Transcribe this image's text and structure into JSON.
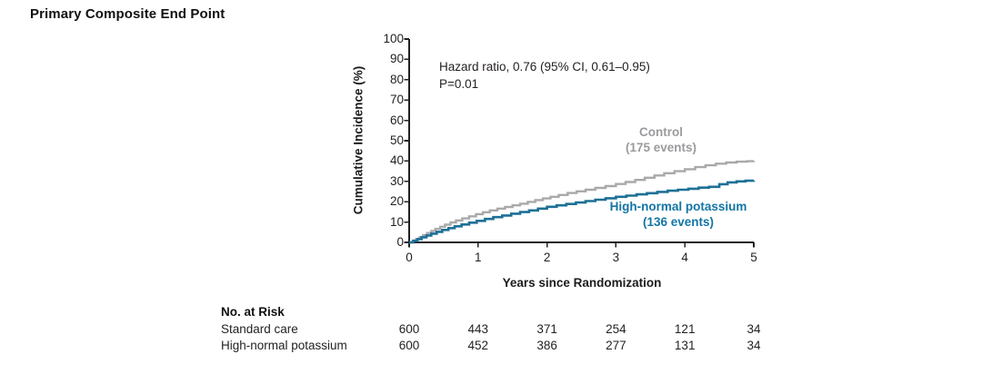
{
  "figure": {
    "title": "Primary Composite End Point"
  },
  "annotation": {
    "line1": "Hazard ratio, 0.76 (95% CI, 0.61–0.95)",
    "line2": "P=0.01"
  },
  "axes": {
    "y_label": "Cumulative Incidence (%)",
    "x_label": "Years since Randomization"
  },
  "legend": {
    "control": {
      "name": "Control",
      "events": "(175 events)"
    },
    "potassium": {
      "name": "High-normal potassium",
      "events": "(136 events)"
    }
  },
  "colors": {
    "control_line": "#a9a9ab",
    "potassium_line": "#1d7096",
    "axis": "#231f20",
    "control_text": "#9b9b9e",
    "potassium_text": "#1375a5"
  },
  "chart_data": {
    "type": "line",
    "subtype": "kaplan-meier-step",
    "title": "Primary Composite End Point",
    "xlabel": "Years since Randomization",
    "ylabel": "Cumulative Incidence (%)",
    "xlim": [
      0,
      5
    ],
    "ylim": [
      0,
      100
    ],
    "x_ticks": [
      0,
      1,
      2,
      3,
      4,
      5
    ],
    "y_ticks": [
      0,
      10,
      20,
      30,
      40,
      50,
      60,
      70,
      80,
      90,
      100
    ],
    "grid": false,
    "legend_position": "inline-labels",
    "annotations": [
      "Hazard ratio, 0.76 (95% CI, 0.61–0.95)",
      "P=0.01"
    ],
    "series": [
      {
        "name": "Control",
        "events": 175,
        "color": "#a9a9ab",
        "points": [
          [
            0,
            0
          ],
          [
            0.05,
            0.8
          ],
          [
            0.1,
            1.7
          ],
          [
            0.15,
            2.6
          ],
          [
            0.2,
            3.6
          ],
          [
            0.26,
            4.6
          ],
          [
            0.32,
            5.6
          ],
          [
            0.38,
            6.6
          ],
          [
            0.45,
            7.7
          ],
          [
            0.52,
            8.7
          ],
          [
            0.6,
            9.8
          ],
          [
            0.68,
            10.8
          ],
          [
            0.77,
            11.8
          ],
          [
            0.87,
            12.8
          ],
          [
            0.97,
            13.9
          ],
          [
            1.07,
            14.8
          ],
          [
            1.17,
            15.7
          ],
          [
            1.28,
            16.6
          ],
          [
            1.39,
            17.4
          ],
          [
            1.5,
            18.2
          ],
          [
            1.61,
            19.0
          ],
          [
            1.72,
            19.9
          ],
          [
            1.83,
            20.8
          ],
          [
            1.94,
            21.6
          ],
          [
            2.05,
            22.4
          ],
          [
            2.17,
            23.3
          ],
          [
            2.3,
            24.3
          ],
          [
            2.43,
            25.1
          ],
          [
            2.56,
            25.9
          ],
          [
            2.7,
            26.8
          ],
          [
            2.85,
            27.7
          ],
          [
            3.0,
            28.7
          ],
          [
            3.14,
            29.7
          ],
          [
            3.28,
            30.7
          ],
          [
            3.42,
            31.8
          ],
          [
            3.56,
            32.9
          ],
          [
            3.7,
            34.0
          ],
          [
            3.85,
            35.0
          ],
          [
            4.0,
            36.0
          ],
          [
            4.15,
            37.0
          ],
          [
            4.3,
            37.9
          ],
          [
            4.45,
            38.7
          ],
          [
            4.6,
            39.3
          ],
          [
            4.75,
            39.7
          ],
          [
            4.9,
            39.9
          ],
          [
            5.0,
            40.0
          ]
        ]
      },
      {
        "name": "High-normal potassium",
        "events": 136,
        "color": "#1d7096",
        "points": [
          [
            0,
            0
          ],
          [
            0.06,
            0.8
          ],
          [
            0.12,
            1.6
          ],
          [
            0.18,
            2.5
          ],
          [
            0.25,
            3.4
          ],
          [
            0.32,
            4.3
          ],
          [
            0.4,
            5.2
          ],
          [
            0.48,
            6.1
          ],
          [
            0.57,
            7.0
          ],
          [
            0.66,
            7.9
          ],
          [
            0.76,
            8.8
          ],
          [
            0.87,
            9.7
          ],
          [
            0.98,
            10.6
          ],
          [
            1.1,
            11.5
          ],
          [
            1.22,
            12.4
          ],
          [
            1.35,
            13.2
          ],
          [
            1.48,
            14.1
          ],
          [
            1.61,
            14.9
          ],
          [
            1.74,
            15.7
          ],
          [
            1.87,
            16.6
          ],
          [
            2.0,
            17.5
          ],
          [
            2.14,
            18.2
          ],
          [
            2.28,
            18.9
          ],
          [
            2.42,
            19.6
          ],
          [
            2.56,
            20.3
          ],
          [
            2.7,
            21.0
          ],
          [
            2.85,
            21.7
          ],
          [
            3.0,
            22.4
          ],
          [
            3.15,
            23.0
          ],
          [
            3.3,
            23.6
          ],
          [
            3.45,
            24.2
          ],
          [
            3.6,
            24.8
          ],
          [
            3.75,
            25.4
          ],
          [
            3.9,
            25.9
          ],
          [
            4.05,
            26.4
          ],
          [
            4.2,
            26.9
          ],
          [
            4.35,
            27.3
          ],
          [
            4.5,
            28.6
          ],
          [
            4.62,
            29.5
          ],
          [
            4.75,
            30.0
          ],
          [
            4.88,
            30.3
          ],
          [
            5.0,
            30.4
          ]
        ]
      }
    ]
  },
  "risk_table": {
    "header": "No. at Risk",
    "rows": [
      {
        "label": "Standard care",
        "values": [
          600,
          443,
          371,
          254,
          121,
          34
        ]
      },
      {
        "label": "High-normal potassium",
        "values": [
          600,
          452,
          386,
          277,
          131,
          34
        ]
      }
    ]
  }
}
